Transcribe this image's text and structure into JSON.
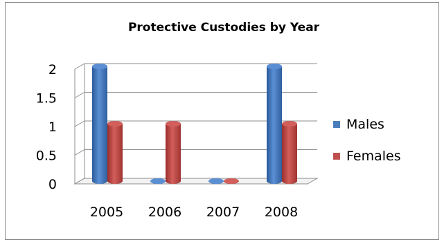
{
  "chart_data": {
    "type": "bar",
    "title": "Protective Custodies by Year",
    "categories": [
      "2005",
      "2006",
      "2007",
      "2008"
    ],
    "series": [
      {
        "name": "Males",
        "values": [
          2,
          0,
          0,
          2
        ],
        "color": "#4a7ebb"
      },
      {
        "name": "Females",
        "values": [
          1,
          1,
          0,
          1
        ],
        "color": "#c0504d"
      }
    ],
    "ylim": [
      0,
      2
    ],
    "yticks": [
      "0",
      "0.5",
      "1",
      "1.5",
      "2"
    ],
    "grid": true,
    "legend": "right",
    "style": "3d-cylinder"
  }
}
